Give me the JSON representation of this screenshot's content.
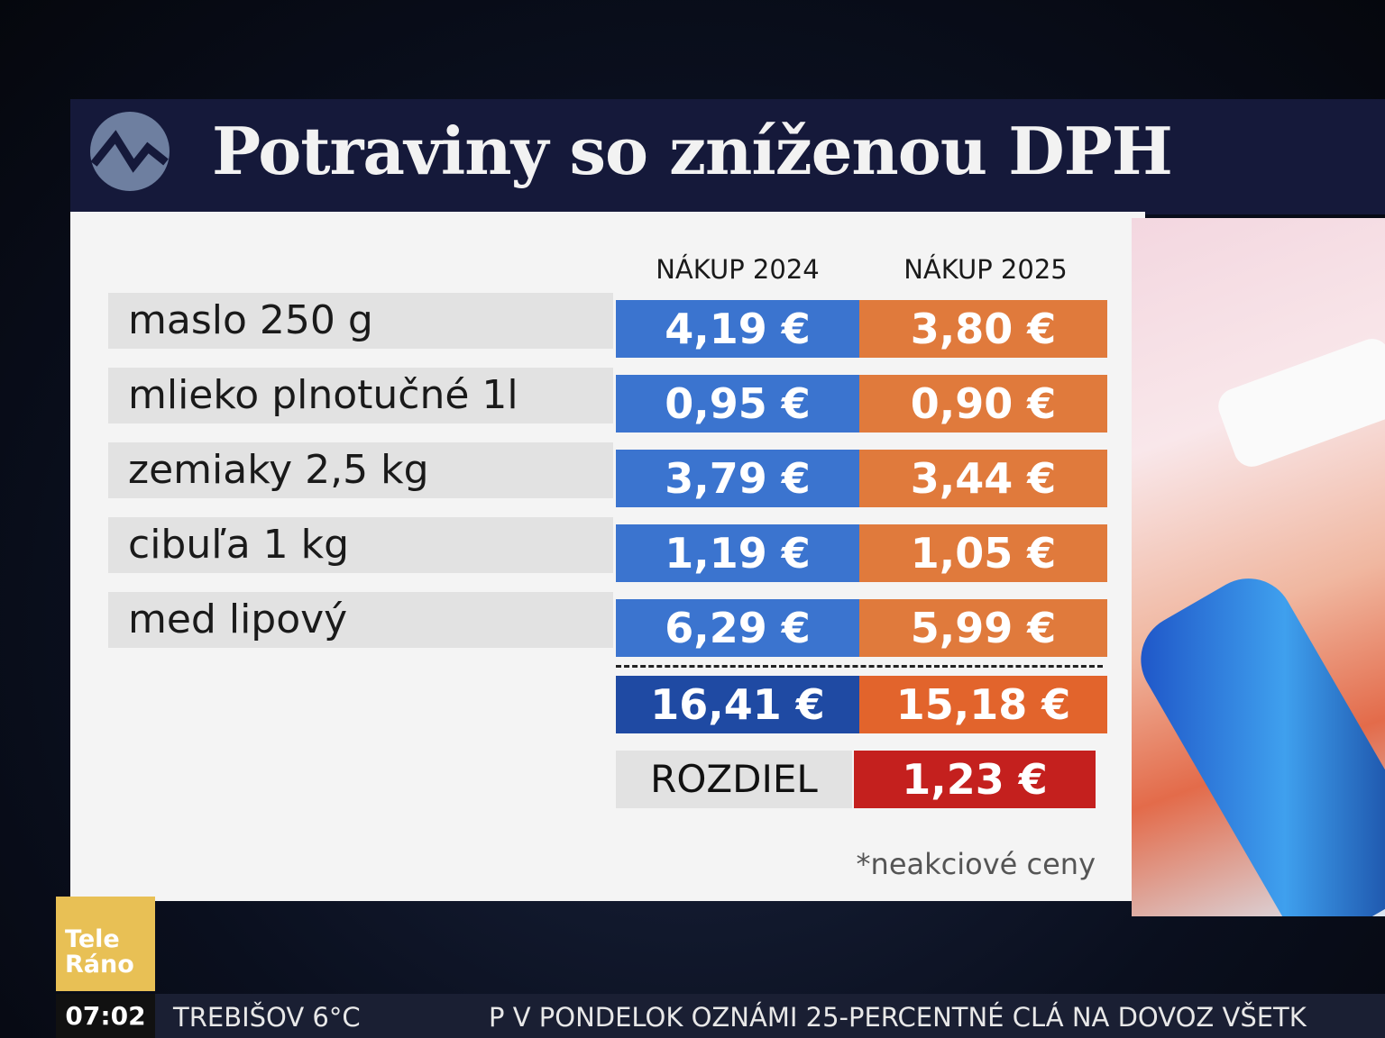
{
  "header": {
    "title": "Potraviny so zníženou DPH"
  },
  "table": {
    "columns": [
      "NÁKUP 2024",
      "NÁKUP 2025"
    ],
    "rows": [
      [
        "maslo 250 g",
        "4,19 €",
        "3,80 €"
      ],
      [
        "mlieko plnotučné 1l",
        "0,95 €",
        "0,90 €"
      ],
      [
        "zemiaky 2,5 kg",
        "3,79 €",
        "3,44 €"
      ],
      [
        "cibuľa 1 kg",
        "1,19 €",
        "1,05 €"
      ],
      [
        "med lipový",
        "6,29 €",
        "5,99 €"
      ]
    ],
    "totals": [
      "16,41 €",
      "15,18 €"
    ],
    "difference": {
      "label": "ROZDIEL",
      "value": "1,23 €"
    },
    "note": "*neakciové ceny"
  },
  "logo": {
    "line1": "Tele",
    "line2": "Ráno"
  },
  "ticker": {
    "time": "07:02",
    "weather": "TREBIŠOV 6°C",
    "news": "P V PONDELOK OZNÁMI 25-PERCENTNÉ CLÁ NA DOVOZ VŠETK"
  }
}
